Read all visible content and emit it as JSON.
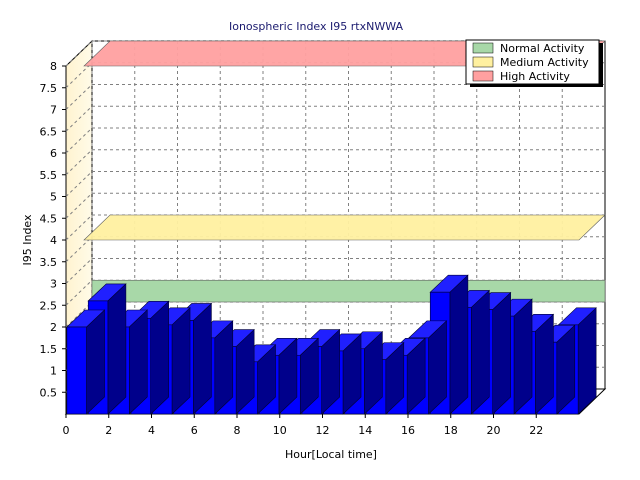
{
  "chart_data": {
    "type": "bar",
    "title": "Ionospheric Index I95 rtxNWWA",
    "xlabel": "Hour[Local time]",
    "ylabel": "I95 Index",
    "ylim": [
      0,
      8
    ],
    "xlim": [
      0,
      24
    ],
    "y_ticks": [
      "0.5",
      "1",
      "1.5",
      "2",
      "2.5",
      "3",
      "3.5",
      "4",
      "4.5",
      "5",
      "5.5",
      "6",
      "6.5",
      "7",
      "7.5",
      "8"
    ],
    "x_ticks": [
      "0",
      "2",
      "4",
      "6",
      "8",
      "10",
      "12",
      "14",
      "16",
      "18",
      "20",
      "22"
    ],
    "grid": true,
    "legend_position": "top-right",
    "bar_color": "#0000ff",
    "x": [
      0,
      1,
      2,
      3,
      4,
      5,
      6,
      7,
      8,
      9,
      10,
      11,
      12,
      13,
      14,
      15,
      16,
      17,
      18,
      19,
      20,
      21,
      22,
      23
    ],
    "values": [
      2.0,
      2.6,
      2.0,
      2.2,
      2.05,
      2.15,
      1.75,
      1.55,
      1.2,
      1.35,
      1.35,
      1.55,
      1.45,
      1.5,
      1.25,
      1.35,
      1.75,
      2.8,
      2.45,
      2.4,
      2.25,
      1.9,
      1.65,
      2.05
    ],
    "bands": [
      {
        "name": "Normal Activity",
        "from": 2,
        "to": 2.5,
        "color": "#a8d8a8"
      },
      {
        "name": "Medium Activity",
        "from": 4,
        "to": 4,
        "color": "#fff0a0"
      },
      {
        "name": "High Activity",
        "from": 8,
        "to": 8,
        "color": "#ffa0a0"
      }
    ]
  }
}
